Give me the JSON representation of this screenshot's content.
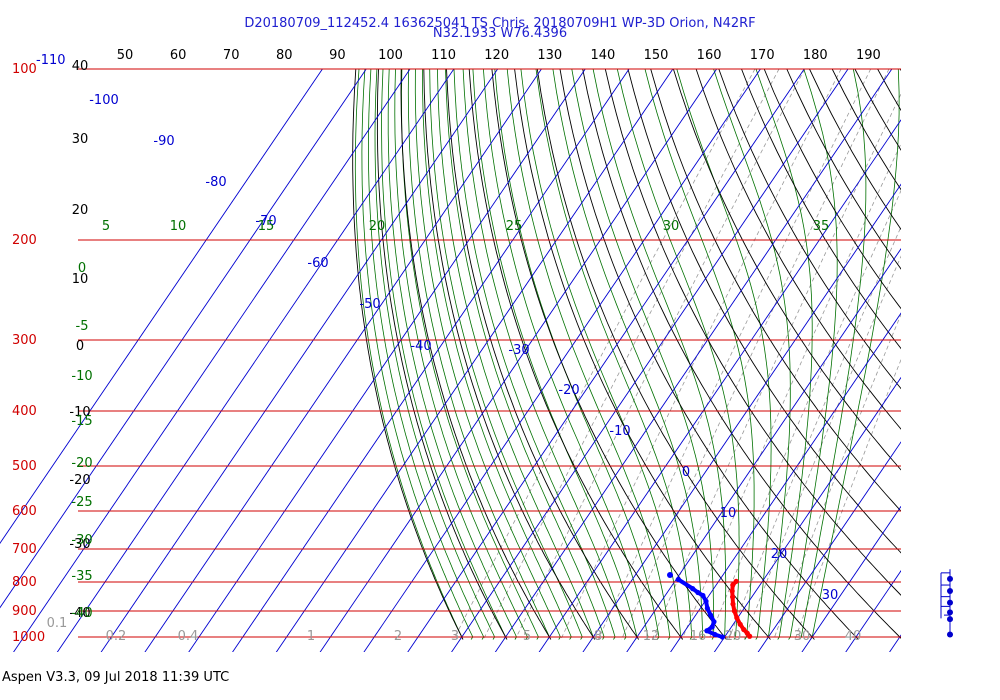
{
  "header": {
    "title_line1": "D20180709_112452.4 163625041 TS Chris, 20180709H1 WP-3D Orion, N42RF",
    "title_line2": "N32.1933 W76.4396"
  },
  "footer": {
    "text": "Aspen V3.3, 09 Jul 2018  11:39 UTC"
  },
  "colors": {
    "isobar": "#d00000",
    "isotherm": "#0000d0",
    "dry_adiabat": "#000000",
    "moist_adiabat": "#007000",
    "mixing_ratio": "#999999",
    "temperature": "#ff0000",
    "dewpoint": "#0000ff"
  },
  "chart_data": {
    "type": "skew-t",
    "pressure_levels": [
      "100",
      "200",
      "300",
      "400",
      "500",
      "600",
      "700",
      "800",
      "900",
      "1000"
    ],
    "pressure_axis_top_label": "100",
    "temperature_left_label": "-110",
    "dry_adiabat_top_labels": [
      "50",
      "60",
      "70",
      "80",
      "90",
      "100",
      "110",
      "120",
      "130",
      "140",
      "150",
      "160",
      "170",
      "180",
      "190"
    ],
    "dry_adiabat_left_labels": [
      "40",
      "30",
      "20",
      "10",
      "0",
      "-10",
      "-20",
      "-30",
      "-40"
    ],
    "isotherm_labels": [
      "-100",
      "-90",
      "-80",
      "-70",
      "-60",
      "-50",
      "-40",
      "-30",
      "-20",
      "-10",
      "0",
      "10",
      "20",
      "30"
    ],
    "moist_adiabat_top_labels": [
      "5",
      "10",
      "15",
      "20",
      "25",
      "30",
      "35"
    ],
    "moist_adiabat_left_labels": [
      "0",
      "-5",
      "-10",
      "-15",
      "-20",
      "-25",
      "-30",
      "-35",
      "-40"
    ],
    "mixing_ratio_labels": [
      "0.1",
      "0.2",
      "0.4",
      "1",
      "2",
      "3",
      "5",
      "8",
      "12",
      "16",
      "20",
      "30",
      "40"
    ],
    "temperature_profile": [
      {
        "p": 798,
        "t": 14.0
      },
      {
        "p": 810,
        "t": 13.8
      },
      {
        "p": 830,
        "t": 14.6
      },
      {
        "p": 850,
        "t": 15.6
      },
      {
        "p": 875,
        "t": 16.8
      },
      {
        "p": 900,
        "t": 18.2
      },
      {
        "p": 925,
        "t": 19.8
      },
      {
        "p": 950,
        "t": 21.6
      },
      {
        "p": 970,
        "t": 23.2
      },
      {
        "p": 985,
        "t": 24.6
      },
      {
        "p": 997,
        "t": 25.6
      }
    ],
    "dewpoint_profile": [
      {
        "p": 792,
        "t": 0.5
      },
      {
        "p": 822,
        "t": 5.2
      },
      {
        "p": 835,
        "t": 7.0
      },
      {
        "p": 845,
        "t": 8.6
      },
      {
        "p": 865,
        "t": 10.2
      },
      {
        "p": 890,
        "t": 11.6
      },
      {
        "p": 915,
        "t": 13.4
      },
      {
        "p": 940,
        "t": 15.2
      },
      {
        "p": 960,
        "t": 15.6
      },
      {
        "p": 975,
        "t": 15.0
      },
      {
        "p": 990,
        "t": 17.4
      },
      {
        "p": 1000,
        "t": 19.5
      }
    ],
    "wind_barbs": [
      {
        "p": 790,
        "speed_kt": 10
      },
      {
        "p": 830,
        "speed_kt": 10
      },
      {
        "p": 870,
        "speed_kt": 10
      },
      {
        "p": 905,
        "speed_kt": 10
      },
      {
        "p": 930,
        "speed_kt": 5
      },
      {
        "p": 990,
        "speed_kt": 0
      }
    ]
  }
}
